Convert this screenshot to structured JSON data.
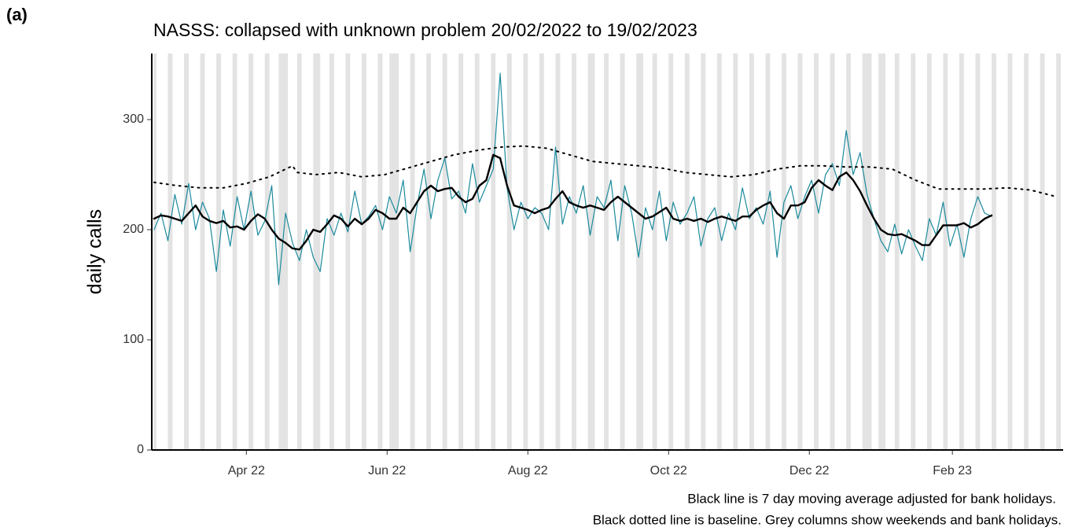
{
  "panel_label": "(a)",
  "chart_data": {
    "type": "line",
    "title": "NASSS: collapsed with unknown problem 20/02/2022 to 19/02/2023",
    "ylabel": "daily calls",
    "notes": [
      "Black line is 7 day moving average adjusted for bank holidays.",
      "Black dotted line is baseline. Grey columns show weekends and bank holidays."
    ],
    "xlim": [
      -1,
      394
    ],
    "xticks": [
      {
        "value": 40,
        "label": "Apr 22"
      },
      {
        "value": 101,
        "label": "Jun 22"
      },
      {
        "value": 162,
        "label": "Aug 22"
      },
      {
        "value": 223,
        "label": "Oct 22"
      },
      {
        "value": 284,
        "label": "Dec 22"
      },
      {
        "value": 346,
        "label": "Feb 23"
      }
    ],
    "ylim": [
      0,
      360
    ],
    "yticks": [
      0,
      100,
      200,
      300
    ],
    "shade_color": "#e3e3e3",
    "shaded": [
      [
        0,
        1
      ],
      [
        6,
        8
      ],
      [
        13,
        15
      ],
      [
        20,
        22
      ],
      [
        27,
        29
      ],
      [
        34,
        36
      ],
      [
        41,
        43
      ],
      [
        48,
        50
      ],
      [
        54,
        58
      ],
      [
        62,
        64
      ],
      [
        69,
        72
      ],
      [
        76,
        78
      ],
      [
        83,
        85
      ],
      [
        90,
        92
      ],
      [
        97,
        99
      ],
      [
        102,
        106
      ],
      [
        111,
        113
      ],
      [
        118,
        120
      ],
      [
        125,
        127
      ],
      [
        132,
        134
      ],
      [
        139,
        141
      ],
      [
        146,
        148
      ],
      [
        153,
        155
      ],
      [
        160,
        162
      ],
      [
        167,
        169
      ],
      [
        174,
        176
      ],
      [
        181,
        183
      ],
      [
        188,
        191
      ],
      [
        195,
        197
      ],
      [
        202,
        204
      ],
      [
        209,
        212
      ],
      [
        216,
        218
      ],
      [
        223,
        225
      ],
      [
        230,
        232
      ],
      [
        237,
        239
      ],
      [
        244,
        246
      ],
      [
        251,
        253
      ],
      [
        258,
        260
      ],
      [
        265,
        267
      ],
      [
        272,
        274
      ],
      [
        279,
        281
      ],
      [
        286,
        288
      ],
      [
        293,
        295
      ],
      [
        300,
        302
      ],
      [
        307,
        311
      ],
      [
        314,
        317
      ],
      [
        321,
        323
      ],
      [
        328,
        330
      ],
      [
        335,
        337
      ],
      [
        342,
        344
      ],
      [
        349,
        351
      ],
      [
        356,
        358
      ],
      [
        363,
        365
      ],
      [
        370,
        372
      ],
      [
        377,
        379
      ],
      [
        384,
        386
      ],
      [
        391,
        393
      ]
    ],
    "series": [
      {
        "color": "#1b8a9c",
        "width": 1.2,
        "dash": "none",
        "x": [
          0,
          3,
          6,
          9,
          12,
          15,
          18,
          21,
          24,
          27,
          30,
          33,
          36,
          39,
          42,
          45,
          48,
          51,
          54,
          57,
          60,
          63,
          66,
          69,
          72,
          75,
          78,
          81,
          84,
          87,
          90,
          93,
          96,
          99,
          102,
          105,
          108,
          111,
          114,
          117,
          120,
          123,
          126,
          129,
          132,
          135,
          138,
          141,
          144,
          147,
          150,
          153,
          156,
          159,
          162,
          165,
          168,
          171,
          174,
          177,
          180,
          183,
          186,
          189,
          192,
          195,
          198,
          201,
          204,
          207,
          210,
          213,
          216,
          219,
          222,
          225,
          228,
          231,
          234,
          237,
          240,
          243,
          246,
          249,
          252,
          255,
          258,
          261,
          264,
          267,
          270,
          273,
          276,
          279,
          282,
          285,
          288,
          291,
          294,
          297,
          300,
          303,
          306,
          309,
          312,
          315,
          318,
          321,
          324,
          327,
          330,
          333,
          336,
          339,
          342,
          345,
          348,
          351,
          354,
          357,
          360,
          363
        ],
        "values": [
          200,
          215,
          190,
          232,
          205,
          242,
          200,
          225,
          210,
          162,
          218,
          185,
          230,
          200,
          235,
          195,
          208,
          240,
          150,
          215,
          188,
          172,
          200,
          175,
          162,
          210,
          195,
          215,
          198,
          235,
          205,
          212,
          222,
          200,
          230,
          215,
          245,
          180,
          222,
          255,
          210,
          245,
          265,
          228,
          235,
          215,
          260,
          225,
          240,
          255,
          342,
          238,
          200,
          225,
          210,
          220,
          215,
          200,
          275,
          205,
          230,
          215,
          240,
          195,
          230,
          220,
          245,
          190,
          240,
          215,
          175,
          220,
          200,
          235,
          190,
          225,
          205,
          215,
          230,
          185,
          210,
          220,
          190,
          215,
          200,
          238,
          210,
          220,
          205,
          235,
          175,
          225,
          240,
          210,
          230,
          245,
          215,
          250,
          260,
          240,
          290,
          250,
          270,
          232,
          210,
          190,
          180,
          205,
          178,
          200,
          185,
          172,
          210,
          195,
          225,
          185,
          205,
          175,
          210,
          230,
          215,
          212
        ]
      },
      {
        "color": "#000000",
        "width": 2.4,
        "dash": "none",
        "x": [
          0,
          3,
          6,
          9,
          12,
          15,
          18,
          21,
          24,
          27,
          30,
          33,
          36,
          39,
          42,
          45,
          48,
          51,
          54,
          57,
          60,
          63,
          66,
          69,
          72,
          75,
          78,
          81,
          84,
          87,
          90,
          93,
          96,
          99,
          102,
          105,
          108,
          111,
          114,
          117,
          120,
          123,
          126,
          129,
          132,
          135,
          138,
          141,
          144,
          147,
          150,
          153,
          156,
          159,
          162,
          165,
          168,
          171,
          174,
          177,
          180,
          183,
          186,
          189,
          192,
          195,
          198,
          201,
          204,
          207,
          210,
          213,
          216,
          219,
          222,
          225,
          228,
          231,
          234,
          237,
          240,
          243,
          246,
          249,
          252,
          255,
          258,
          261,
          264,
          267,
          270,
          273,
          276,
          279,
          282,
          285,
          288,
          291,
          294,
          297,
          300,
          303,
          306,
          309,
          312,
          315,
          318,
          321,
          324,
          327,
          330,
          333,
          336,
          339,
          342,
          345,
          348,
          351,
          354,
          357,
          360,
          363
        ],
        "values": [
          210,
          213,
          212,
          210,
          208,
          215,
          222,
          212,
          208,
          206,
          208,
          202,
          203,
          200,
          208,
          214,
          210,
          200,
          192,
          188,
          183,
          182,
          190,
          200,
          198,
          205,
          213,
          210,
          203,
          210,
          205,
          210,
          218,
          215,
          210,
          210,
          220,
          215,
          225,
          235,
          240,
          235,
          237,
          238,
          230,
          225,
          228,
          240,
          245,
          268,
          265,
          240,
          222,
          220,
          218,
          215,
          218,
          220,
          228,
          235,
          225,
          222,
          220,
          222,
          220,
          218,
          225,
          230,
          225,
          220,
          215,
          210,
          212,
          216,
          220,
          210,
          208,
          210,
          208,
          210,
          207,
          210,
          212,
          210,
          208,
          212,
          212,
          218,
          222,
          225,
          215,
          210,
          222,
          222,
          225,
          238,
          245,
          240,
          236,
          248,
          252,
          245,
          235,
          222,
          210,
          200,
          196,
          195,
          196,
          193,
          190,
          186,
          186,
          195,
          204,
          204,
          204,
          206,
          202,
          205,
          210,
          213
        ]
      },
      {
        "color": "#000000",
        "width": 2,
        "dash": "2 6",
        "x": [
          0,
          10,
          20,
          30,
          40,
          50,
          57,
          60,
          62,
          70,
          80,
          90,
          100,
          110,
          120,
          130,
          140,
          150,
          160,
          170,
          180,
          190,
          200,
          210,
          220,
          230,
          240,
          250,
          260,
          270,
          280,
          290,
          300,
          310,
          320,
          330,
          340,
          350,
          360,
          370,
          380,
          391
        ],
        "values": [
          243,
          240,
          238,
          238,
          242,
          248,
          255,
          258,
          252,
          250,
          252,
          248,
          250,
          256,
          262,
          268,
          272,
          275,
          276,
          274,
          268,
          262,
          260,
          258,
          256,
          252,
          250,
          248,
          250,
          255,
          258,
          258,
          257,
          257,
          255,
          245,
          237,
          237,
          237,
          238,
          236,
          230
        ]
      }
    ]
  }
}
